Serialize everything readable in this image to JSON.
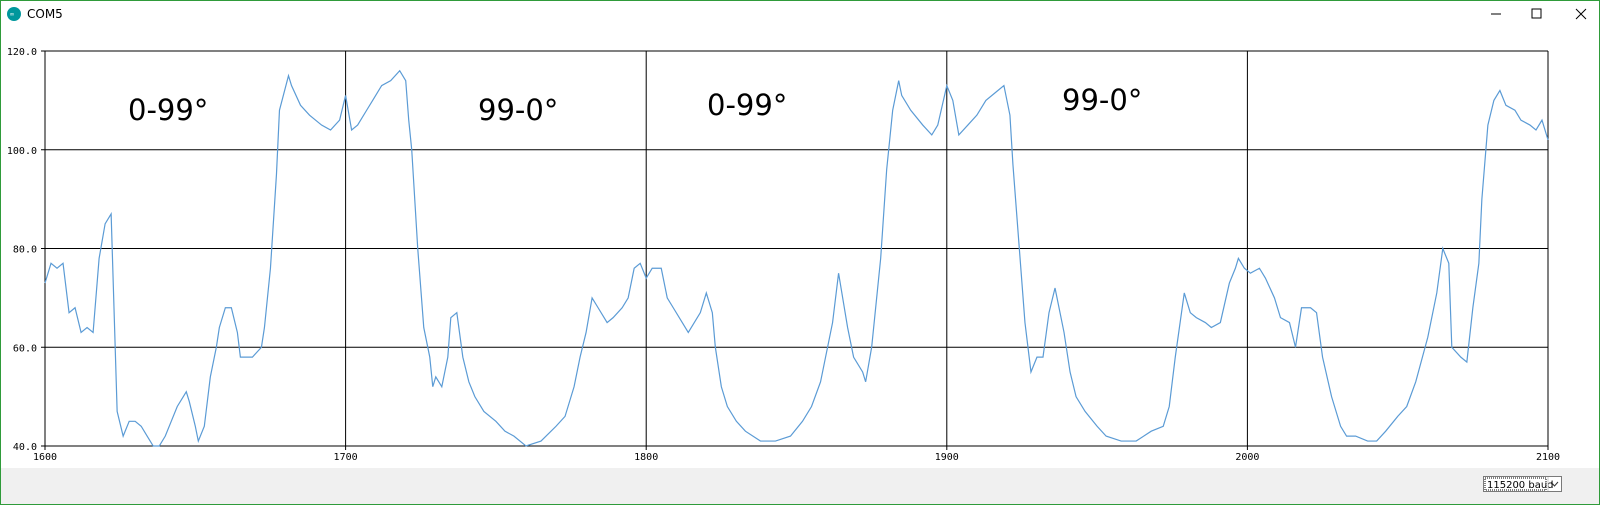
{
  "window": {
    "title": "COM5",
    "baud": "115200 baud"
  },
  "chart_data": {
    "type": "line",
    "annotations": [
      "0-99°",
      "99-0°",
      "0-99°",
      "99-0°"
    ],
    "x": [
      1600,
      1602,
      1604,
      1606,
      1608,
      1610,
      1612,
      1614,
      1616,
      1618,
      1620,
      1622,
      1624,
      1626,
      1628,
      1630,
      1632,
      1634,
      1636,
      1638,
      1640,
      1642,
      1644,
      1646,
      1647,
      1648,
      1650,
      1651,
      1653,
      1655,
      1657,
      1658,
      1660,
      1662,
      1664,
      1665,
      1667,
      1669,
      1672,
      1673,
      1675,
      1677,
      1678,
      1681,
      1682,
      1685,
      1688,
      1692,
      1695,
      1698,
      1700,
      1702,
      1704,
      1707,
      1709,
      1712,
      1715,
      1718,
      1720,
      1721,
      1722,
      1724,
      1726,
      1728,
      1729,
      1730,
      1732,
      1734,
      1735,
      1737,
      1739,
      1741,
      1743,
      1746,
      1750,
      1753,
      1756,
      1760,
      1765,
      1770,
      1773,
      1776,
      1778,
      1780,
      1782,
      1784,
      1787,
      1789,
      1792,
      1794,
      1796,
      1798,
      1800,
      1802,
      1805,
      1807,
      1809,
      1812,
      1814,
      1818,
      1820,
      1822,
      1823,
      1825,
      1827,
      1830,
      1833,
      1838,
      1843,
      1848,
      1852,
      1855,
      1858,
      1862,
      1864,
      1867,
      1869,
      1872,
      1873,
      1875,
      1878,
      1880,
      1882,
      1884,
      1885,
      1888,
      1892,
      1895,
      1897,
      1900,
      1902,
      1904,
      1907,
      1910,
      1913,
      1917,
      1919,
      1921,
      1922,
      1924,
      1926,
      1928,
      1930,
      1932,
      1934,
      1936,
      1939,
      1941,
      1943,
      1946,
      1950,
      1953,
      1958,
      1963,
      1968,
      1972,
      1974,
      1976,
      1979,
      1981,
      1983,
      1986,
      1988,
      1991,
      1994,
      1996,
      1997,
      1999,
      2001,
      2004,
      2006,
      2009,
      2011,
      2014,
      2016,
      2018,
      2021,
      2023,
      2025,
      2028,
      2031,
      2033,
      2036,
      2040,
      2043,
      2046,
      2050,
      2053,
      2056,
      2060,
      2063,
      2065,
      2067,
      2068,
      2071,
      2073,
      2075,
      2077,
      2078,
      2080,
      2082,
      2084,
      2086,
      2089,
      2091,
      2094,
      2096,
      2098,
      2100
    ],
    "series": [
      {
        "color": "#5b9bd5",
        "values": [
          73,
          77,
          76,
          77,
          67,
          68,
          63,
          64,
          63,
          78,
          85,
          87,
          47,
          42,
          45,
          45,
          44,
          42,
          40,
          40,
          42,
          45,
          48,
          50,
          51,
          49,
          44,
          41,
          44,
          54,
          60,
          64,
          68,
          68,
          63,
          58,
          58,
          58,
          60,
          64,
          76,
          95,
          108,
          115,
          113,
          109,
          107,
          105,
          104,
          106,
          111,
          104,
          105,
          108,
          110,
          113,
          114,
          116,
          114,
          106,
          100,
          80,
          64,
          58,
          52,
          54,
          52,
          58,
          66,
          67,
          58,
          53,
          50,
          47,
          45,
          43,
          42,
          40,
          41,
          44,
          46,
          52,
          58,
          63,
          70,
          68,
          65,
          66,
          68,
          70,
          76,
          77,
          74,
          76,
          76,
          70,
          68,
          65,
          63,
          67,
          71,
          67,
          60,
          52,
          48,
          45,
          43,
          41,
          41,
          42,
          45,
          48,
          53,
          65,
          75,
          64,
          58,
          55,
          53,
          60,
          78,
          96,
          108,
          114,
          111,
          108,
          105,
          103,
          105,
          113,
          110,
          103,
          105,
          107,
          110,
          112,
          113,
          107,
          97,
          81,
          65,
          55,
          58,
          58,
          67,
          72,
          63,
          55,
          50,
          47,
          44,
          42,
          41,
          41,
          43,
          44,
          48,
          58,
          71,
          67,
          66,
          65,
          64,
          65,
          73,
          76,
          78,
          76,
          75,
          76,
          74,
          70,
          66,
          65,
          60,
          68,
          68,
          67,
          58,
          50,
          44,
          42,
          42,
          41,
          41,
          43,
          46,
          48,
          53,
          62,
          71,
          80,
          77,
          60,
          58,
          57,
          68,
          77,
          90,
          105,
          110,
          112,
          109,
          108,
          106,
          105,
          104,
          106,
          102
        ]
      }
    ],
    "xlim": [
      1600,
      2100
    ],
    "xticks": [
      1600,
      1700,
      1800,
      1900,
      2000,
      2100
    ],
    "ylim": [
      40,
      120
    ],
    "yticks": [
      {
        "value": 40,
        "label": "40.0"
      },
      {
        "value": 60,
        "label": "60.0"
      },
      {
        "value": 80,
        "label": "80.0"
      },
      {
        "value": 100,
        "label": "100.0"
      },
      {
        "value": 120,
        "label": "120.0"
      }
    ],
    "grid": true
  }
}
